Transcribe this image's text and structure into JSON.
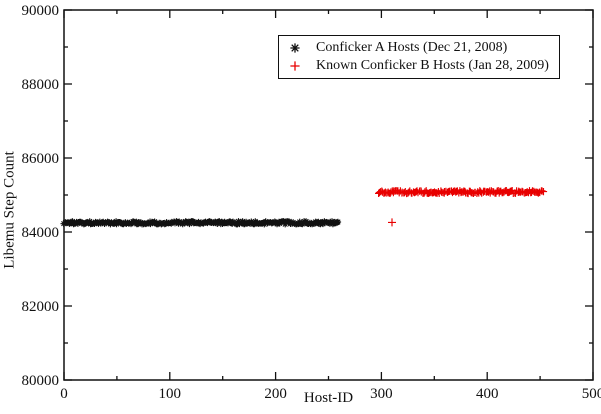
{
  "window": {
    "background_color": "#ffffff",
    "text_color": "#111111"
  },
  "chart_data": {
    "type": "scatter",
    "title": "",
    "xlabel": "Host-ID",
    "ylabel": "Libemu Step Count",
    "xlim": [
      0,
      500
    ],
    "ylim": [
      80000,
      90000
    ],
    "x_major_ticks": [
      0,
      100,
      200,
      300,
      400,
      500
    ],
    "x_minor_ticks": [
      50,
      150,
      250,
      350,
      450
    ],
    "y_major_ticks": [
      80000,
      82000,
      84000,
      86000,
      88000,
      90000
    ],
    "y_minor_ticks": [
      81000,
      83000,
      85000,
      87000,
      89000
    ],
    "grid": false,
    "ticks_mirrored": true,
    "legend_position": "top-right-inside-boxed",
    "axis_color": "#111111",
    "series": [
      {
        "name": "Conficker A Hosts (Dec 21, 2008)",
        "marker": "asterisk",
        "color": "#111111",
        "band": {
          "x_start": 0,
          "x_end": 259,
          "count": 260,
          "y_mean": 84250,
          "y_spread": 80
        },
        "outliers": []
      },
      {
        "name": "Known Conficker B Hosts (Jan 28, 2009)",
        "marker": "plus",
        "color": "#e80000",
        "band": {
          "x_start": 297,
          "x_end": 453,
          "count": 157,
          "y_mean": 85080,
          "y_spread": 80
        },
        "outliers": [
          {
            "x": 310,
            "y": 84260
          }
        ]
      }
    ]
  }
}
